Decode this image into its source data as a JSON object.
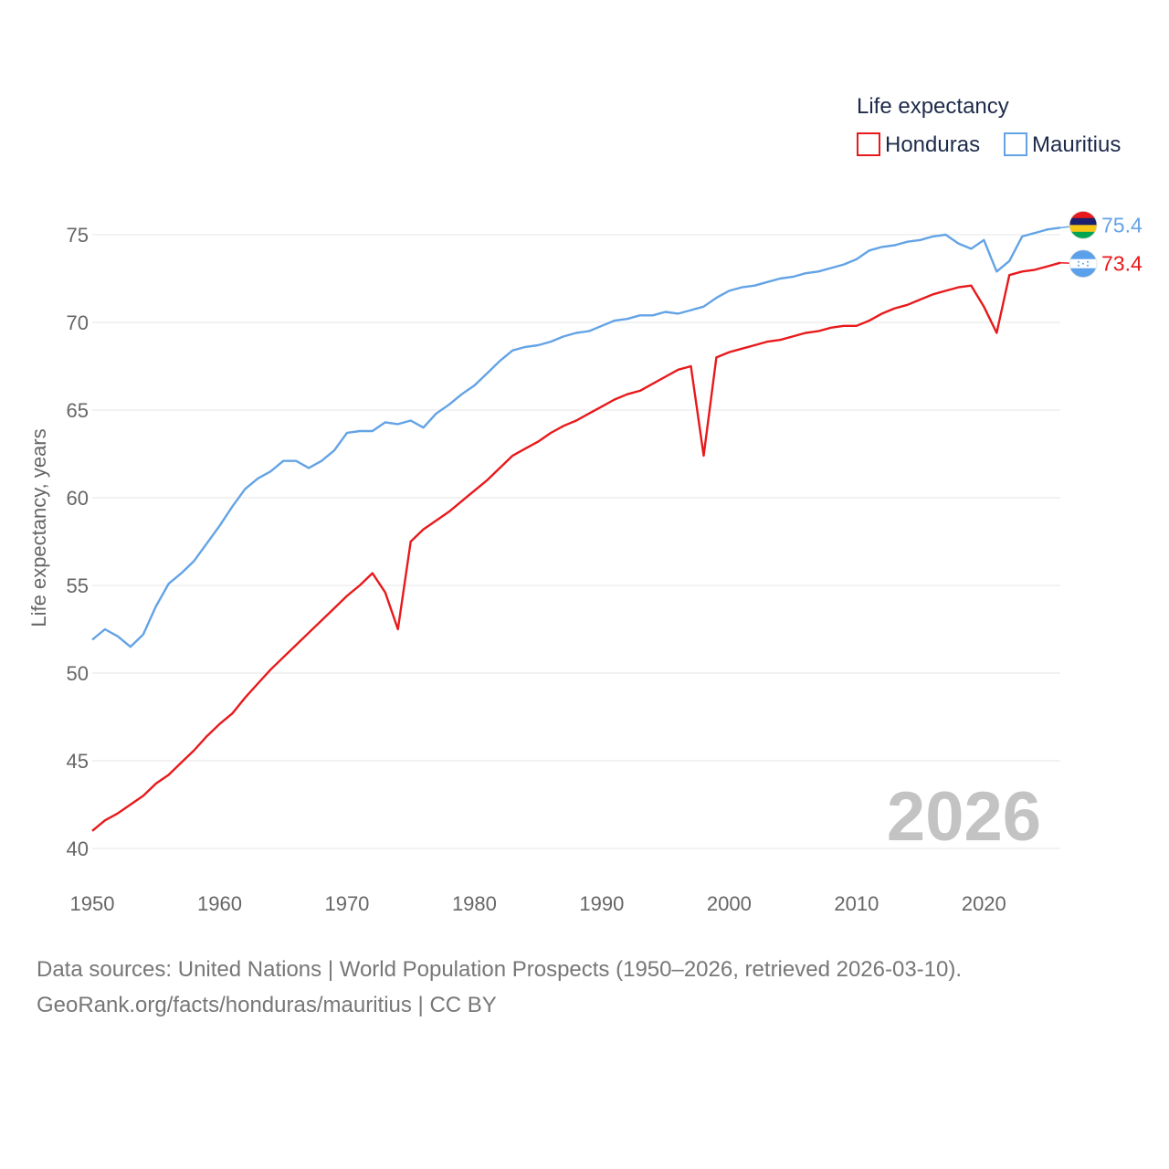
{
  "footer": {
    "line1": "Data sources: United Nations | World Population Prospects (1950–2026, retrieved 2026-03-10).",
    "line2": "GeoRank.org/facts/honduras/mauritius | CC BY"
  },
  "chart_data": {
    "type": "line",
    "legend_title": "Life expectancy",
    "ylabel": "Life expectancy, years",
    "xlabel": "",
    "year_watermark": "2026",
    "xlim": [
      1950,
      2026
    ],
    "ylim": [
      40,
      77
    ],
    "x_ticks": [
      "1950",
      "1960",
      "1970",
      "1980",
      "1990",
      "2000",
      "2010",
      "2020"
    ],
    "y_ticks": [
      "40",
      "45",
      "50",
      "55",
      "60",
      "65",
      "70",
      "75"
    ],
    "x": [
      1950,
      1951,
      1952,
      1953,
      1954,
      1955,
      1956,
      1957,
      1958,
      1959,
      1960,
      1961,
      1962,
      1963,
      1964,
      1965,
      1966,
      1967,
      1968,
      1969,
      1970,
      1971,
      1972,
      1973,
      1974,
      1975,
      1976,
      1977,
      1978,
      1979,
      1980,
      1981,
      1982,
      1983,
      1984,
      1985,
      1986,
      1987,
      1988,
      1989,
      1990,
      1991,
      1992,
      1993,
      1994,
      1995,
      1996,
      1997,
      1998,
      1999,
      2000,
      2001,
      2002,
      2003,
      2004,
      2005,
      2006,
      2007,
      2008,
      2009,
      2010,
      2011,
      2012,
      2013,
      2014,
      2015,
      2016,
      2017,
      2018,
      2019,
      2020,
      2021,
      2022,
      2023,
      2024,
      2025,
      2026
    ],
    "series": [
      {
        "name": "Honduras",
        "color": "#e8191b",
        "end_label": "73.4",
        "values": [
          41.0,
          41.6,
          42.0,
          42.5,
          43.0,
          43.7,
          44.2,
          44.9,
          45.6,
          46.4,
          47.1,
          47.7,
          48.6,
          49.4,
          50.2,
          50.9,
          51.6,
          52.3,
          53.0,
          53.7,
          54.4,
          55.0,
          55.7,
          54.6,
          52.5,
          57.5,
          58.2,
          58.7,
          59.2,
          59.8,
          60.4,
          61.0,
          61.7,
          62.4,
          62.8,
          63.2,
          63.7,
          64.1,
          64.4,
          64.8,
          65.2,
          65.6,
          65.9,
          66.1,
          66.5,
          66.9,
          67.3,
          67.5,
          62.4,
          68.0,
          68.3,
          68.5,
          68.7,
          68.9,
          69.0,
          69.2,
          69.4,
          69.5,
          69.7,
          69.8,
          69.8,
          70.1,
          70.5,
          70.8,
          71.0,
          71.3,
          71.6,
          71.8,
          72.0,
          72.1,
          70.9,
          69.4,
          72.7,
          72.9,
          73.0,
          73.2,
          73.4
        ]
      },
      {
        "name": "Mauritius",
        "color": "#63a3e5",
        "end_label": "75.4",
        "values": [
          51.9,
          52.5,
          52.1,
          51.5,
          52.2,
          53.8,
          55.1,
          55.7,
          56.4,
          57.4,
          58.4,
          59.5,
          60.5,
          61.1,
          61.5,
          62.1,
          62.1,
          61.7,
          62.1,
          62.7,
          63.7,
          63.8,
          63.8,
          64.3,
          64.2,
          64.4,
          64.0,
          64.8,
          65.3,
          65.9,
          66.4,
          67.1,
          67.8,
          68.4,
          68.6,
          68.7,
          68.9,
          69.2,
          69.4,
          69.5,
          69.8,
          70.1,
          70.2,
          70.4,
          70.4,
          70.6,
          70.5,
          70.7,
          70.9,
          71.4,
          71.8,
          72.0,
          72.1,
          72.3,
          72.5,
          72.6,
          72.8,
          72.9,
          73.1,
          73.3,
          73.6,
          74.1,
          74.3,
          74.4,
          74.6,
          74.7,
          74.9,
          75.0,
          74.5,
          74.2,
          74.7,
          72.9,
          73.5,
          74.9,
          75.1,
          75.3,
          75.4
        ]
      }
    ]
  }
}
